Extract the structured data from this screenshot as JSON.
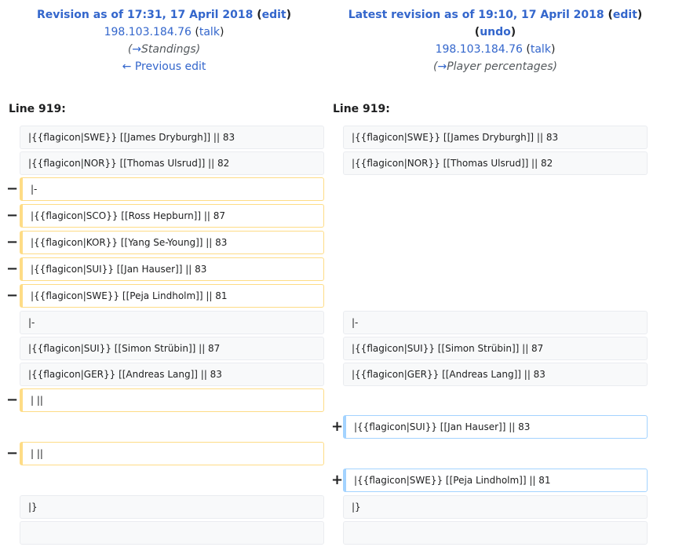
{
  "left_header": {
    "title": "Revision as of 17:31, 17 April 2018",
    "edit": "edit",
    "user": "198.103.184.76",
    "talk": "talk",
    "summary_arrow": "→",
    "summary": "Standings",
    "prev": "← Previous edit"
  },
  "right_header": {
    "title": "Latest revision as of 19:10, 17 April 2018",
    "edit": "edit",
    "undo": "undo",
    "user": "198.103.184.76",
    "talk": "talk",
    "summary_arrow": "→",
    "summary": "Player percentages"
  },
  "line_label_left": "Line 919:",
  "line_label_right": "Line 919:",
  "markers": {
    "del": "−",
    "add": "+"
  },
  "rows": {
    "r1": {
      "left": "|{{flagicon|SWE}} [[James Dryburgh]] || 83",
      "right": "|{{flagicon|SWE}} [[James Dryburgh]] || 83"
    },
    "r2": {
      "left": "|{{flagicon|NOR}} [[Thomas Ulsrud]] || 82",
      "right": "|{{flagicon|NOR}} [[Thomas Ulsrud]] || 82"
    },
    "r3": {
      "left": "|-"
    },
    "r4": {
      "left": "|{{flagicon|SCO}} [[Ross Hepburn]] || 87"
    },
    "r5": {
      "left": "|{{flagicon|KOR}} [[Yang Se-Young]] || 83"
    },
    "r6": {
      "left": "|{{flagicon|SUI}} [[Jan Hauser]] || 83"
    },
    "r7": {
      "left": "|{{flagicon|SWE}} [[Peja Lindholm]] || 81"
    },
    "r8": {
      "left": "|-",
      "right": "|-"
    },
    "r9": {
      "left": "|{{flagicon|SUI}} [[Simon Strübin]] || 87",
      "right": "|{{flagicon|SUI}} [[Simon Strübin]] || 87"
    },
    "r10": {
      "left": "|{{flagicon|GER}} [[Andreas Lang]] || 83",
      "right": "|{{flagicon|GER}} [[Andreas Lang]] || 83"
    },
    "r11": {
      "left": "| ||"
    },
    "r12": {
      "right": "|{{flagicon|SUI}} [[Jan Hauser]] || 83"
    },
    "r13": {
      "left": "| ||"
    },
    "r14": {
      "right": "|{{flagicon|SWE}} [[Peja Lindholm]] || 81"
    },
    "r15": {
      "left": "|}",
      "right": "|}"
    },
    "r16": {
      "left": "",
      "right": ""
    }
  }
}
